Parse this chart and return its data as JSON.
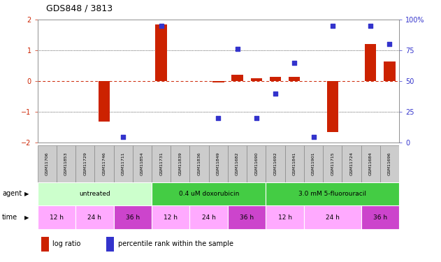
{
  "title": "GDS848 / 3813",
  "samples": [
    "GSM11706",
    "GSM11853",
    "GSM11729",
    "GSM11746",
    "GSM11711",
    "GSM11854",
    "GSM11731",
    "GSM11839",
    "GSM11836",
    "GSM11849",
    "GSM11682",
    "GSM11690",
    "GSM11692",
    "GSM11841",
    "GSM11901",
    "GSM11715",
    "GSM11724",
    "GSM11684",
    "GSM11696"
  ],
  "log_ratio": [
    0.0,
    0.0,
    0.0,
    -1.3,
    0.0,
    0.0,
    1.85,
    0.0,
    0.0,
    -0.05,
    0.2,
    0.1,
    0.15,
    0.15,
    0.0,
    -1.65,
    0.0,
    1.2,
    0.65
  ],
  "percentile": [
    null,
    null,
    null,
    null,
    5,
    null,
    95,
    null,
    null,
    20,
    76,
    20,
    40,
    65,
    5,
    95,
    null,
    95,
    80
  ],
  "ylim_left": [
    -2,
    2
  ],
  "ylim_right": [
    0,
    100
  ],
  "y_ticks_left": [
    -2,
    -1,
    0,
    1,
    2
  ],
  "y_ticks_right": [
    0,
    25,
    50,
    75,
    100
  ],
  "bar_color": "#cc2200",
  "dot_color": "#3333cc",
  "zero_line_color": "#cc2200",
  "dotted_line_color": "#000000",
  "agent_groups": [
    {
      "label": "untreated",
      "start": 0,
      "end": 6,
      "color": "#ccffcc"
    },
    {
      "label": "0.4 uM doxorubicin",
      "start": 6,
      "end": 12,
      "color": "#44cc44"
    },
    {
      "label": "3.0 mM 5-fluorouracil",
      "start": 12,
      "end": 19,
      "color": "#44cc44"
    }
  ],
  "time_groups": [
    {
      "label": "12 h",
      "start": 0,
      "end": 2,
      "color": "#ffaaff"
    },
    {
      "label": "24 h",
      "start": 2,
      "end": 4,
      "color": "#ffaaff"
    },
    {
      "label": "36 h",
      "start": 4,
      "end": 6,
      "color": "#cc44cc"
    },
    {
      "label": "12 h",
      "start": 6,
      "end": 8,
      "color": "#ffaaff"
    },
    {
      "label": "24 h",
      "start": 8,
      "end": 10,
      "color": "#ffaaff"
    },
    {
      "label": "36 h",
      "start": 10,
      "end": 12,
      "color": "#cc44cc"
    },
    {
      "label": "12 h",
      "start": 12,
      "end": 14,
      "color": "#ffaaff"
    },
    {
      "label": "24 h",
      "start": 14,
      "end": 17,
      "color": "#ffaaff"
    },
    {
      "label": "36 h",
      "start": 17,
      "end": 19,
      "color": "#cc44cc"
    }
  ],
  "legend_bar_label": "log ratio",
  "legend_dot_label": "percentile rank within the sample",
  "axis_label_color_left": "#cc2200",
  "axis_label_color_right": "#3333cc",
  "sample_box_color": "#cccccc",
  "sample_box_border": "#888888"
}
